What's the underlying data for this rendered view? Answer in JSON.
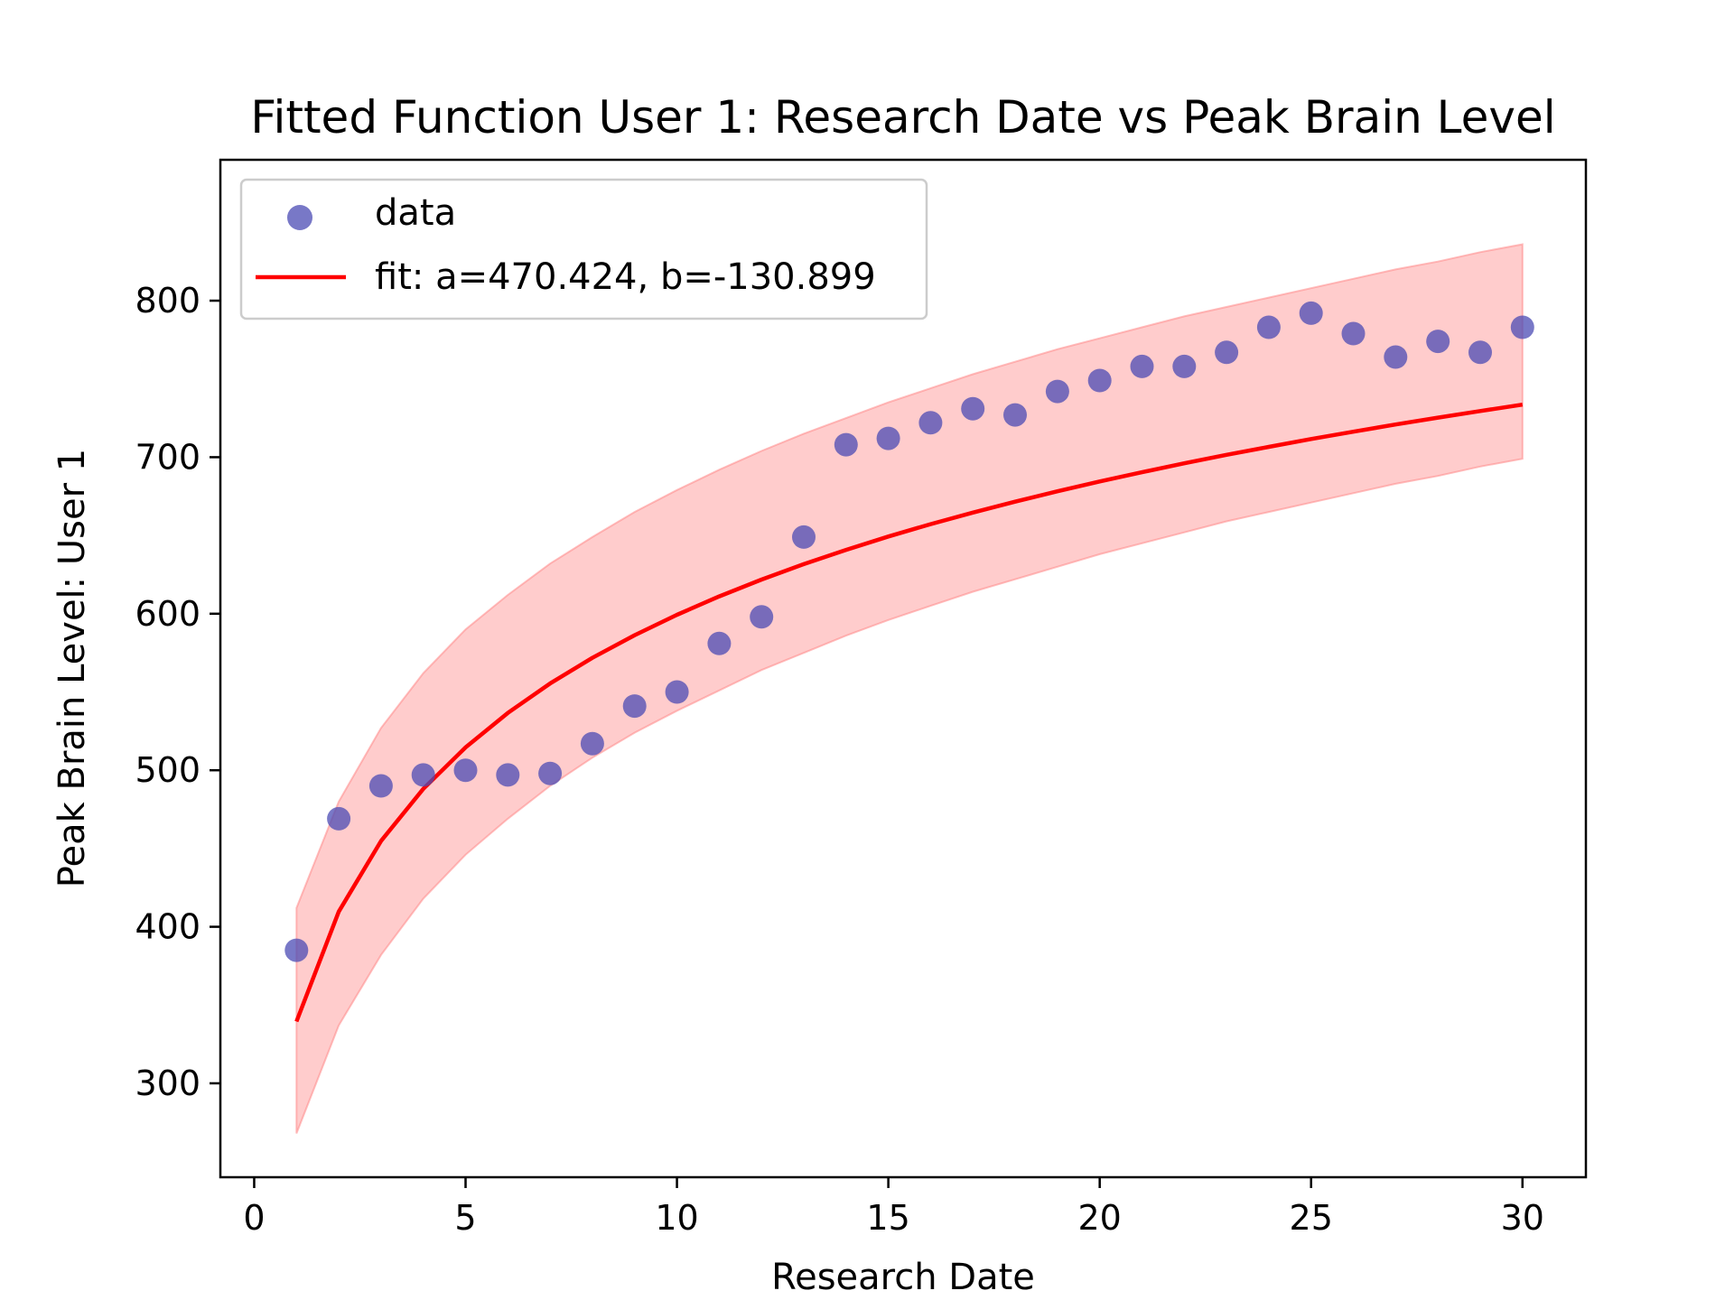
{
  "chart_data": {
    "type": "scatter",
    "title": "Fitted Function User 1: Research Date vs Peak Brain Level",
    "xlabel": "Research Date",
    "ylabel": "Peak Brain Level: User 1",
    "xlim": [
      -0.8,
      31.5
    ],
    "ylim": [
      240,
      890
    ],
    "xticks": [
      0,
      5,
      10,
      15,
      20,
      25,
      30
    ],
    "yticks": [
      300,
      400,
      500,
      600,
      700,
      800
    ],
    "grid": false,
    "legend_position": "top-left",
    "colors": {
      "scatter": "#4b4bb4",
      "fit": "#ff0000",
      "band": "#ff8080"
    },
    "series": [
      {
        "name": "data",
        "kind": "scatter",
        "x": [
          1,
          2,
          3,
          4,
          5,
          6,
          7,
          8,
          9,
          10,
          11,
          12,
          13,
          14,
          15,
          16,
          17,
          18,
          19,
          20,
          21,
          22,
          23,
          24,
          25,
          26,
          27,
          28,
          29,
          30
        ],
        "y": [
          385,
          469,
          490,
          497,
          500,
          497,
          498,
          517,
          541,
          550,
          581,
          598,
          649,
          708,
          712,
          722,
          731,
          727,
          742,
          749,
          758,
          758,
          767,
          783,
          792,
          779,
          764,
          774,
          767,
          783
        ]
      },
      {
        "name": "fit: a=470.424, b=-130.899",
        "kind": "line",
        "x": [
          1,
          2,
          3,
          4,
          5,
          6,
          7,
          8,
          9,
          10,
          11,
          12,
          13,
          14,
          15,
          16,
          17,
          18,
          19,
          20,
          21,
          22,
          23,
          24,
          25,
          26,
          27,
          28,
          29,
          30
        ],
        "y": [
          339.5,
          409.7,
          454.8,
          488.1,
          514.6,
          536.6,
          555.4,
          571.8,
          586.3,
          599.3,
          611.1,
          621.8,
          631.7,
          640.8,
          649.3,
          657.2,
          664.6,
          671.6,
          678.2,
          684.5,
          690.4,
          696.1,
          701.5,
          706.6,
          711.6,
          716.3,
          720.9,
          725.3,
          729.5,
          733.6
        ]
      },
      {
        "name": "confidence band",
        "kind": "band",
        "x": [
          1,
          2,
          3,
          4,
          5,
          6,
          7,
          8,
          9,
          10,
          11,
          12,
          13,
          14,
          15,
          16,
          17,
          18,
          19,
          20,
          21,
          22,
          23,
          24,
          25,
          26,
          27,
          28,
          29,
          30
        ],
        "y_upper": [
          412,
          480,
          527,
          562,
          590,
          612,
          632,
          649,
          665,
          679,
          692,
          704,
          715,
          725,
          735,
          744,
          753,
          761,
          769,
          776,
          783,
          790,
          796,
          802,
          808,
          814,
          820,
          825,
          831,
          836
        ],
        "y_lower": [
          268,
          337,
          382,
          418,
          446,
          469,
          490,
          508,
          524,
          538,
          551,
          564,
          575,
          586,
          596,
          605,
          614,
          622,
          630,
          638,
          645,
          652,
          659,
          665,
          671,
          677,
          683,
          688,
          694,
          699
        ]
      }
    ],
    "legend": [
      {
        "label": "data",
        "marker": "circle"
      },
      {
        "label": "fit: a=470.424, b=-130.899",
        "marker": "line"
      }
    ]
  }
}
